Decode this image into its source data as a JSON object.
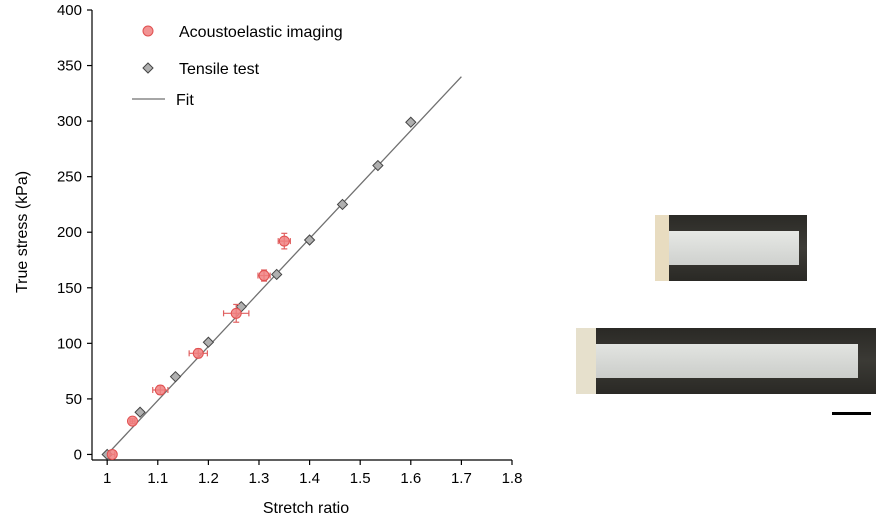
{
  "chart_data": {
    "type": "scatter",
    "xlabel": "Stretch ratio",
    "ylabel": "True stress (kPa)",
    "xlim": [
      0.97,
      1.8
    ],
    "ylim": [
      -5,
      400
    ],
    "x_ticks": [
      "1",
      "1.1",
      "1.2",
      "1.3",
      "1.4",
      "1.5",
      "1.6",
      "1.7",
      "1.8"
    ],
    "y_ticks": [
      "0",
      "50",
      "100",
      "150",
      "200",
      "250",
      "300",
      "350",
      "400"
    ],
    "legend_position": "top-left",
    "series": [
      {
        "name": "Acoustoelastic imaging",
        "marker": "circle",
        "color": "#f08080",
        "points": [
          {
            "x": 1.01,
            "y": 0,
            "xerr": 0.005,
            "yerr": 0
          },
          {
            "x": 1.05,
            "y": 30,
            "xerr": 0.005,
            "yerr": 2
          },
          {
            "x": 1.105,
            "y": 58,
            "xerr": 0.015,
            "yerr": 4
          },
          {
            "x": 1.18,
            "y": 91,
            "xerr": 0.018,
            "yerr": 4
          },
          {
            "x": 1.255,
            "y": 127,
            "xerr": 0.025,
            "yerr": 8
          },
          {
            "x": 1.31,
            "y": 161,
            "xerr": 0.012,
            "yerr": 5
          },
          {
            "x": 1.35,
            "y": 192,
            "xerr": 0.012,
            "yerr": 7
          }
        ]
      },
      {
        "name": "Tensile test",
        "marker": "diamond",
        "color": "#b0b0b0",
        "points": [
          {
            "x": 1.0,
            "y": 0
          },
          {
            "x": 1.065,
            "y": 38
          },
          {
            "x": 1.135,
            "y": 70
          },
          {
            "x": 1.2,
            "y": 101
          },
          {
            "x": 1.265,
            "y": 133
          },
          {
            "x": 1.335,
            "y": 162
          },
          {
            "x": 1.4,
            "y": 193
          },
          {
            "x": 1.465,
            "y": 225
          },
          {
            "x": 1.535,
            "y": 260
          },
          {
            "x": 1.6,
            "y": 299
          }
        ]
      },
      {
        "name": "Fit",
        "marker": "line",
        "color": "#707070",
        "points": [
          {
            "x": 1.0,
            "y": 0
          },
          {
            "x": 1.7,
            "y": 340
          }
        ]
      }
    ]
  },
  "photos": {
    "unstretched_color": "#d9dbd8",
    "stretched_color": "#d4d6d3",
    "clamp_color": "#3a3a36"
  }
}
